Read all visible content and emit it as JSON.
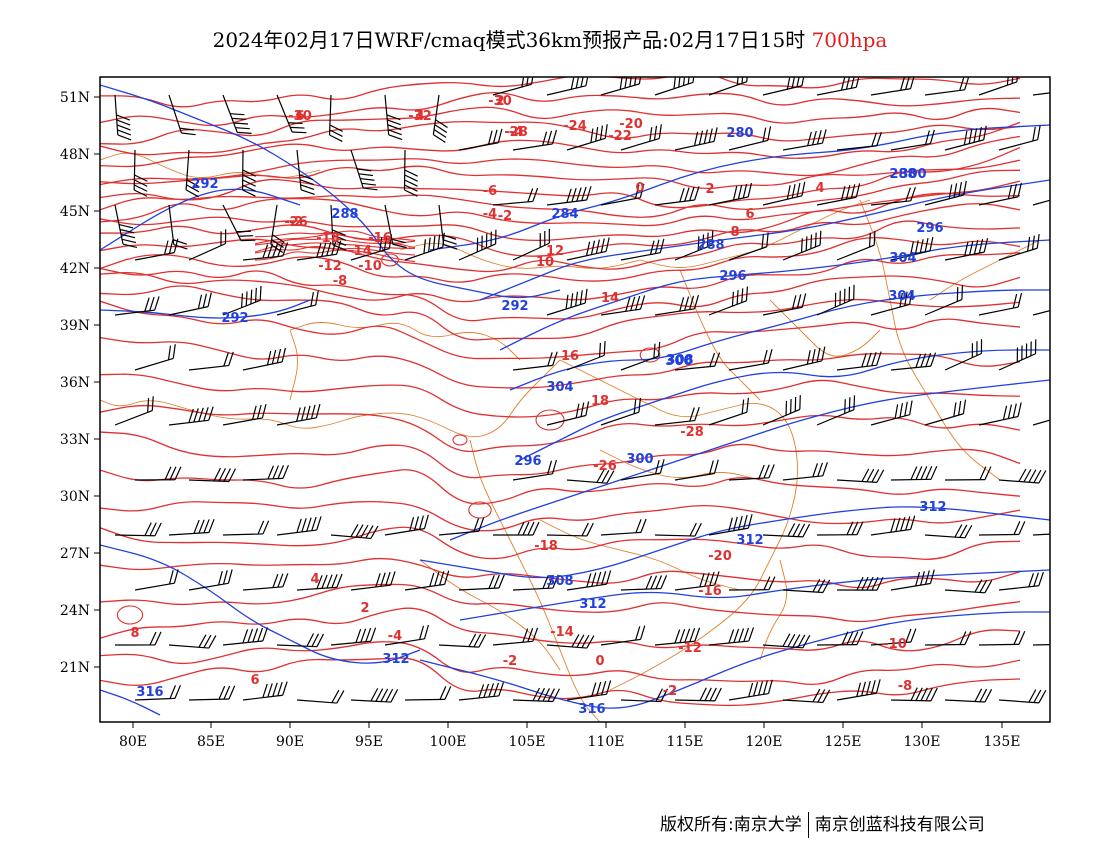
{
  "title": {
    "main": "2024年02月17日WRF/cmaq模式36km预报产品:02月17日15时",
    "level": "700hpa"
  },
  "axes": {
    "lon_labels": [
      "80E",
      "85E",
      "90E",
      "95E",
      "100E",
      "105E",
      "110E",
      "115E",
      "120E",
      "125E",
      "130E",
      "135E"
    ],
    "lat_labels": [
      "51N",
      "48N",
      "45N",
      "42N",
      "39N",
      "36N",
      "33N",
      "30N",
      "27N",
      "24N",
      "21N"
    ]
  },
  "colors": {
    "temperature": "#e03030",
    "geopotential": "#2040e0",
    "boundary": "#e08030",
    "wind_barb": "#000000"
  },
  "temperature_labels": [
    "-30",
    "-32",
    "-30",
    "-26",
    "-28",
    "-24",
    "-22",
    "-20",
    "-18",
    "-16",
    "-14",
    "-12",
    "-10",
    "-8",
    "-6",
    "-4",
    "-2",
    "0",
    "2",
    "4",
    "6",
    "8",
    "10",
    "12",
    "14",
    "16",
    "18",
    "-28",
    "-26",
    "-18",
    "-20",
    "-16",
    "-14",
    "-12",
    "-10",
    "-8",
    "-2",
    "0",
    "-2",
    "-4",
    "2",
    "4",
    "6",
    "8",
    "6",
    "4",
    "2",
    "-2",
    "-4"
  ],
  "height_labels": [
    "292",
    "288",
    "292",
    "284",
    "288",
    "292",
    "296",
    "300",
    "304",
    "296",
    "300",
    "304",
    "308",
    "300",
    "304",
    "312",
    "312",
    "308",
    "312",
    "316",
    "316",
    "312",
    "280",
    "288",
    "296"
  ],
  "footer": {
    "left": "版权所有:南京大学",
    "right": "南京创蓝科技有限公司"
  }
}
